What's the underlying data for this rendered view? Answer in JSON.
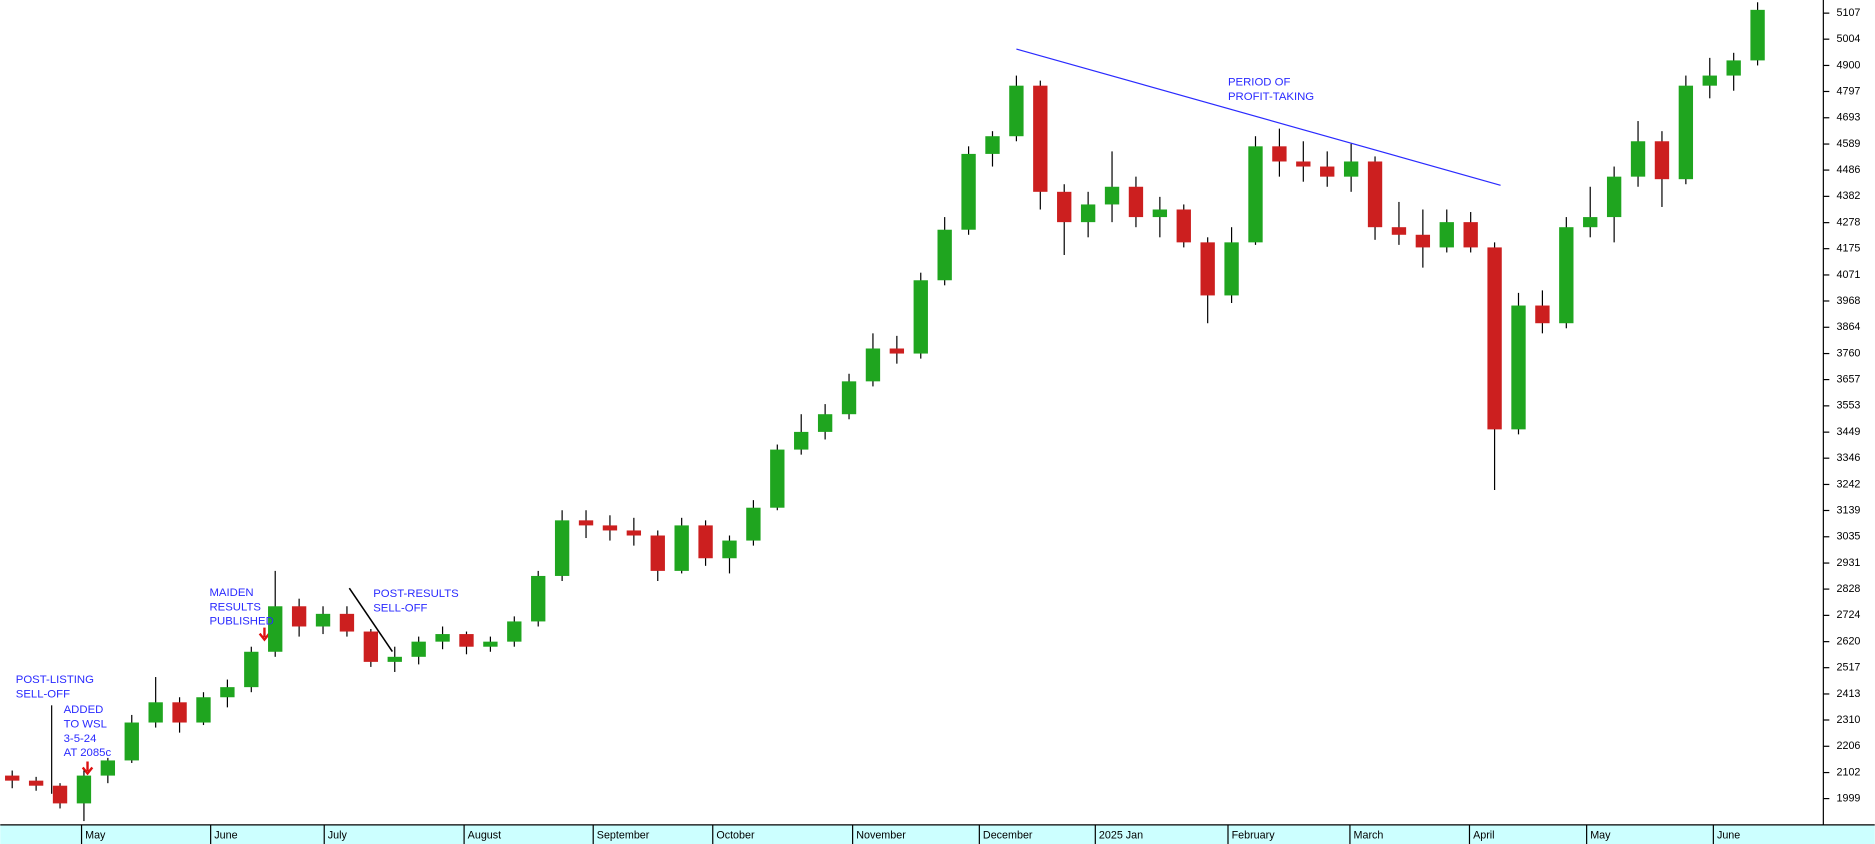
{
  "chart_data": {
    "type": "candlestick",
    "up_color": "#1fa51f",
    "down_color": "#cc1f1f",
    "axis_color": "#ccffff",
    "xlim": [
      -0.5,
      75.75
    ],
    "ylim": [
      1895,
      5159
    ],
    "yticks": [
      1999,
      2102,
      2206,
      2310,
      2413,
      2517,
      2620,
      2724,
      2828,
      2931,
      3035,
      3139,
      3242,
      3346,
      3449,
      3553,
      3657,
      3760,
      3864,
      3968,
      4071,
      4175,
      4278,
      4382,
      4486,
      4589,
      4693,
      4797,
      4900,
      5004,
      5107
    ],
    "xticks": [
      {
        "value": 2.9,
        "label": "May"
      },
      {
        "value": 8.3,
        "label": "June"
      },
      {
        "value": 13.05,
        "label": "July"
      },
      {
        "value": 18.9,
        "label": "August"
      },
      {
        "value": 24.3,
        "label": "September"
      },
      {
        "value": 29.3,
        "label": "October"
      },
      {
        "value": 35.15,
        "label": "November"
      },
      {
        "value": 40.45,
        "label": "December"
      },
      {
        "value": 45.3,
        "label": "2025 Jan"
      },
      {
        "value": 50.85,
        "label": "February"
      },
      {
        "value": 55.95,
        "label": "March"
      },
      {
        "value": 60.95,
        "label": "April"
      },
      {
        "value": 65.85,
        "label": "May"
      },
      {
        "value": 71.15,
        "label": "June"
      }
    ],
    "open": [
      2090,
      2070,
      2050,
      1980,
      2090,
      2150,
      2300,
      2380,
      2300,
      2400,
      2440,
      2580,
      2760,
      2680,
      2730,
      2660,
      2540,
      2560,
      2620,
      2650,
      2600,
      2620,
      2700,
      2880,
      3100,
      3080,
      3060,
      3040,
      2900,
      3080,
      2950,
      3020,
      3150,
      3380,
      3450,
      3520,
      3650,
      3780,
      3760,
      4050,
      4250,
      4550,
      4620,
      4820,
      4400,
      4280,
      4350,
      4420,
      4300,
      4330,
      4200,
      3990,
      4200,
      4580,
      4520,
      4500,
      4460,
      4520,
      4260,
      4230,
      4180,
      4280,
      4180,
      3460,
      3950,
      3880,
      4260,
      4300,
      4460,
      4600,
      4450,
      4820,
      4860,
      4920
    ],
    "high": [
      2110,
      2085,
      2060,
      2110,
      2160,
      2330,
      2480,
      2400,
      2420,
      2470,
      2600,
      2900,
      2790,
      2760,
      2760,
      2670,
      2600,
      2640,
      2680,
      2660,
      2640,
      2720,
      2900,
      3140,
      3140,
      3120,
      3110,
      3060,
      3110,
      3100,
      3040,
      3180,
      3400,
      3520,
      3560,
      3680,
      3840,
      3830,
      4080,
      4300,
      4580,
      4640,
      4860,
      4840,
      4430,
      4400,
      4560,
      4460,
      4380,
      4350,
      4220,
      4260,
      4620,
      4650,
      4600,
      4560,
      4590,
      4540,
      4360,
      4330,
      4330,
      4320,
      4200,
      4000,
      4010,
      4300,
      4420,
      4500,
      4680,
      4640,
      4860,
      4930,
      4950,
      5150
    ],
    "low": [
      2040,
      2030,
      1960,
      1910,
      2060,
      2140,
      2280,
      2260,
      2290,
      2360,
      2420,
      2560,
      2640,
      2650,
      2640,
      2520,
      2500,
      2530,
      2590,
      2570,
      2580,
      2600,
      2680,
      2860,
      3030,
      3020,
      3000,
      2860,
      2890,
      2920,
      2890,
      3000,
      3140,
      3360,
      3420,
      3500,
      3630,
      3720,
      3740,
      4030,
      4230,
      4500,
      4600,
      4330,
      4150,
      4220,
      4280,
      4260,
      4220,
      4180,
      3880,
      3960,
      4190,
      4460,
      4440,
      4420,
      4400,
      4210,
      4190,
      4100,
      4160,
      4160,
      3220,
      3440,
      3840,
      3860,
      4220,
      4200,
      4420,
      4340,
      4430,
      4770,
      4800,
      4900
    ],
    "close": [
      2070,
      2050,
      1980,
      2090,
      2150,
      2300,
      2380,
      2300,
      2400,
      2440,
      2580,
      2760,
      2680,
      2730,
      2660,
      2540,
      2560,
      2620,
      2650,
      2600,
      2620,
      2700,
      2880,
      3100,
      3080,
      3060,
      3040,
      2900,
      3080,
      2950,
      3020,
      3150,
      3380,
      3450,
      3520,
      3650,
      3780,
      3760,
      4050,
      4250,
      4550,
      4620,
      4820,
      4400,
      4280,
      4350,
      4420,
      4300,
      4330,
      4200,
      3990,
      4200,
      4580,
      4520,
      4500,
      4460,
      4520,
      4260,
      4230,
      4180,
      4280,
      4180,
      3460,
      3950,
      3880,
      4260,
      4300,
      4460,
      4600,
      4450,
      4820,
      4860,
      4920,
      5120
    ],
    "annotations": [
      {
        "lines": [
          "POST-LISTING",
          "SELL-OFF"
        ]
      },
      {
        "lines": [
          "ADDED",
          "TO WSL",
          "3-5-24",
          "AT 2085c"
        ]
      },
      {
        "lines": [
          "MAIDEN",
          "RESULTS",
          "PUBLISHED"
        ]
      },
      {
        "lines": [
          "POST-RESULTS",
          "SELL-OFF"
        ]
      },
      {
        "lines": [
          "PERIOD OF",
          "PROFIT-TAKING"
        ]
      }
    ]
  }
}
